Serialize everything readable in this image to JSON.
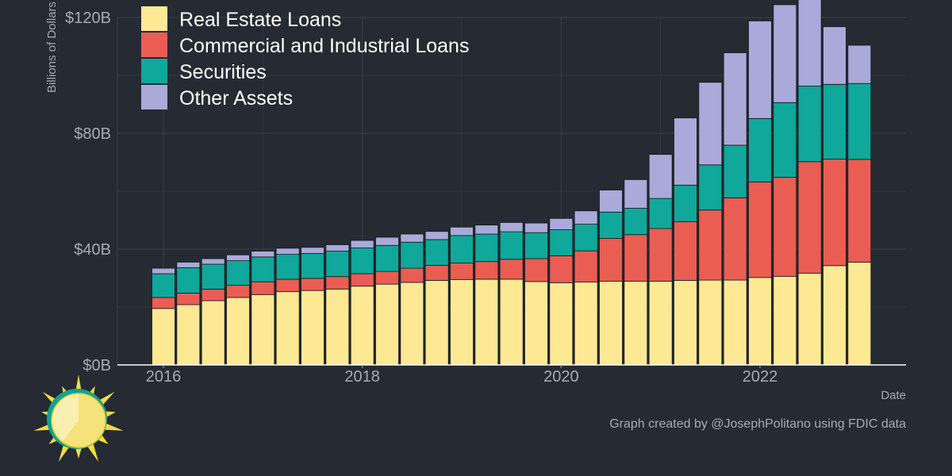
{
  "chart_data": {
    "type": "bar",
    "stacked": true,
    "x": [
      "2016-01",
      "2016-04",
      "2016-07",
      "2016-10",
      "2017-01",
      "2017-04",
      "2017-07",
      "2017-10",
      "2018-01",
      "2018-04",
      "2018-07",
      "2018-10",
      "2019-01",
      "2019-04",
      "2019-07",
      "2019-10",
      "2020-01",
      "2020-04",
      "2020-07",
      "2020-10",
      "2021-01",
      "2021-04",
      "2021-07",
      "2021-10",
      "2022-01",
      "2022-04",
      "2022-07",
      "2022-10",
      "2023-01"
    ],
    "series": [
      {
        "name": "Real Estate Loans",
        "color": "#fde994",
        "values": [
          19.5,
          20.8,
          22.2,
          23.3,
          24.3,
          25.3,
          25.7,
          26.2,
          27.2,
          27.9,
          28.5,
          29.2,
          29.5,
          29.6,
          29.6,
          28.8,
          28.4,
          28.6,
          28.9,
          28.9,
          28.9,
          29.2,
          29.3,
          29.3,
          30.2,
          30.6,
          31.7,
          34.3,
          35.5
        ]
      },
      {
        "name": "Commercial and Industrial Loans",
        "color": "#ea5d53",
        "values": [
          3.8,
          4.0,
          4.0,
          4.2,
          4.4,
          4.3,
          4.2,
          4.3,
          4.3,
          4.4,
          4.9,
          5.2,
          5.7,
          6.1,
          6.9,
          7.9,
          9.3,
          10.8,
          14.8,
          16.1,
          18.2,
          20.3,
          24.2,
          28.4,
          33.0,
          34.2,
          38.5,
          36.8,
          35.5
        ]
      },
      {
        "name": "Securities",
        "color": "#10a89a",
        "values": [
          8.2,
          8.8,
          8.6,
          8.5,
          8.6,
          8.6,
          8.6,
          8.8,
          8.9,
          9.0,
          9.0,
          8.9,
          9.5,
          9.5,
          9.5,
          9.0,
          9.0,
          9.2,
          9.1,
          9.1,
          10.4,
          12.6,
          15.6,
          18.2,
          21.9,
          25.8,
          26.1,
          25.8,
          26.2
        ]
      },
      {
        "name": "Other Assets",
        "color": "#a9aad9",
        "values": [
          1.9,
          1.9,
          1.9,
          2.0,
          2.0,
          2.1,
          2.1,
          2.2,
          2.6,
          2.8,
          2.8,
          2.8,
          2.9,
          3.1,
          3.2,
          3.3,
          3.9,
          4.6,
          7.6,
          9.9,
          15.2,
          23.2,
          28.5,
          31.9,
          33.7,
          33.8,
          33.7,
          19.9,
          13.2
        ]
      }
    ],
    "xlabel": "Date",
    "ylabel": "Billions of Dollars",
    "ylim": [
      0,
      120
    ],
    "yticks": [
      0,
      40,
      80,
      120
    ],
    "ytick_labels": [
      "$0B",
      "$40B",
      "$80B",
      "$120B"
    ],
    "xticks": [
      "2016",
      "2018",
      "2020",
      "2022"
    ],
    "grid": true,
    "legend_position": "top-left",
    "caption": "Graph created by @JosephPolitano using FDIC data",
    "colors": {
      "background": "#252a33",
      "grid": "#3a3f48",
      "axis": "#ffffff",
      "text": "#a9acb2",
      "bar_border": "#15181d"
    }
  }
}
